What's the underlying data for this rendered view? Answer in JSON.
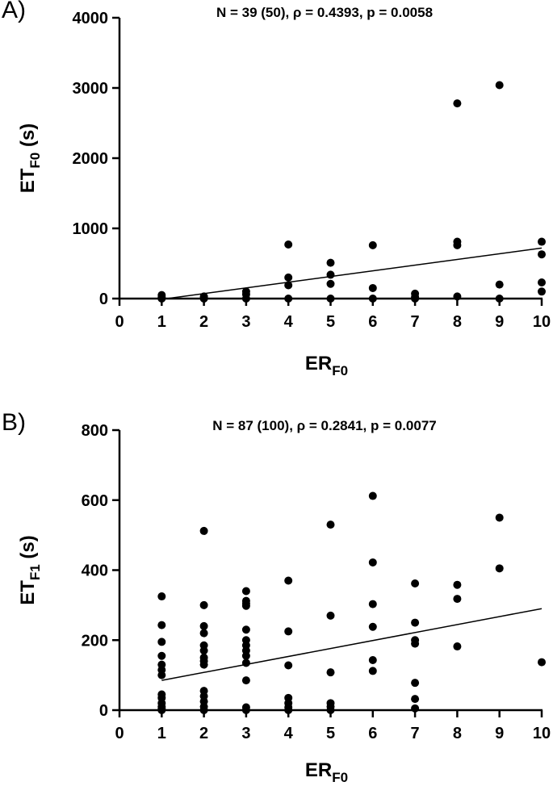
{
  "chart_data": [
    {
      "type": "scatter",
      "panel_label": "A)",
      "stats_text": "N = 39 (50), ρ = 0.4393, p = 0.0058",
      "xlabel": "ER",
      "xlabel_sub": "F0",
      "ylabel": "ET",
      "ylabel_sub": "F0",
      "ylabel_unit": " (s)",
      "xlim": [
        0,
        10
      ],
      "ylim": [
        0,
        4000
      ],
      "xticks": [
        0,
        1,
        2,
        3,
        4,
        5,
        6,
        7,
        8,
        9,
        10
      ],
      "yticks": [
        0,
        1000,
        2000,
        3000,
        4000
      ],
      "grid": false,
      "points": [
        [
          1,
          50
        ],
        [
          1,
          20
        ],
        [
          1,
          0
        ],
        [
          2,
          30
        ],
        [
          2,
          15
        ],
        [
          2,
          0
        ],
        [
          3,
          100
        ],
        [
          3,
          60
        ],
        [
          3,
          0
        ],
        [
          4,
          770
        ],
        [
          4,
          300
        ],
        [
          4,
          190
        ],
        [
          4,
          0
        ],
        [
          5,
          510
        ],
        [
          5,
          340
        ],
        [
          5,
          210
        ],
        [
          5,
          0
        ],
        [
          6,
          760
        ],
        [
          6,
          150
        ],
        [
          6,
          0
        ],
        [
          7,
          70
        ],
        [
          7,
          20
        ],
        [
          7,
          0
        ],
        [
          8,
          2780
        ],
        [
          8,
          810
        ],
        [
          8,
          760
        ],
        [
          8,
          30
        ],
        [
          9,
          3040
        ],
        [
          9,
          200
        ],
        [
          9,
          0
        ],
        [
          10,
          810
        ],
        [
          10,
          630
        ],
        [
          10,
          230
        ],
        [
          10,
          100
        ]
      ],
      "fit_line": {
        "x": [
          1,
          10
        ],
        "y": [
          -10,
          720
        ]
      }
    },
    {
      "type": "scatter",
      "panel_label": "B)",
      "stats_text": "N = 87 (100), ρ = 0.2841, p = 0.0077",
      "xlabel": "ER",
      "xlabel_sub": "F0",
      "ylabel": "ET",
      "ylabel_sub": "F1",
      "ylabel_unit": " (s)",
      "xlim": [
        0,
        10
      ],
      "ylim": [
        0,
        800
      ],
      "xticks": [
        0,
        1,
        2,
        3,
        4,
        5,
        6,
        7,
        8,
        9,
        10
      ],
      "yticks": [
        0,
        200,
        400,
        600,
        800
      ],
      "grid": false,
      "points": [
        [
          1,
          325
        ],
        [
          1,
          243
        ],
        [
          1,
          195
        ],
        [
          1,
          155
        ],
        [
          1,
          130
        ],
        [
          1,
          115
        ],
        [
          1,
          100
        ],
        [
          1,
          45
        ],
        [
          1,
          35
        ],
        [
          1,
          20
        ],
        [
          1,
          10
        ],
        [
          1,
          5
        ],
        [
          1,
          0
        ],
        [
          2,
          512
        ],
        [
          2,
          300
        ],
        [
          2,
          240
        ],
        [
          2,
          220
        ],
        [
          2,
          185
        ],
        [
          2,
          170
        ],
        [
          2,
          150
        ],
        [
          2,
          140
        ],
        [
          2,
          130
        ],
        [
          2,
          55
        ],
        [
          2,
          40
        ],
        [
          2,
          25
        ],
        [
          2,
          10
        ],
        [
          2,
          0
        ],
        [
          3,
          340
        ],
        [
          3,
          312
        ],
        [
          3,
          305
        ],
        [
          3,
          298
        ],
        [
          3,
          230
        ],
        [
          3,
          200
        ],
        [
          3,
          185
        ],
        [
          3,
          170
        ],
        [
          3,
          155
        ],
        [
          3,
          135
        ],
        [
          3,
          85
        ],
        [
          3,
          8
        ],
        [
          3,
          0
        ],
        [
          4,
          370
        ],
        [
          4,
          225
        ],
        [
          4,
          128
        ],
        [
          4,
          35
        ],
        [
          4,
          20
        ],
        [
          4,
          8
        ],
        [
          4,
          0
        ],
        [
          5,
          530
        ],
        [
          5,
          270
        ],
        [
          5,
          108
        ],
        [
          5,
          20
        ],
        [
          5,
          10
        ],
        [
          5,
          0
        ],
        [
          6,
          612
        ],
        [
          6,
          422
        ],
        [
          6,
          303
        ],
        [
          6,
          238
        ],
        [
          6,
          143
        ],
        [
          6,
          112
        ],
        [
          7,
          362
        ],
        [
          7,
          250
        ],
        [
          7,
          200
        ],
        [
          7,
          190
        ],
        [
          7,
          78
        ],
        [
          7,
          32
        ],
        [
          7,
          5
        ],
        [
          8,
          358
        ],
        [
          8,
          318
        ],
        [
          8,
          182
        ],
        [
          9,
          550
        ],
        [
          9,
          405
        ],
        [
          10,
          137
        ]
      ],
      "fit_line": {
        "x": [
          1,
          10
        ],
        "y": [
          85,
          290
        ]
      }
    }
  ]
}
